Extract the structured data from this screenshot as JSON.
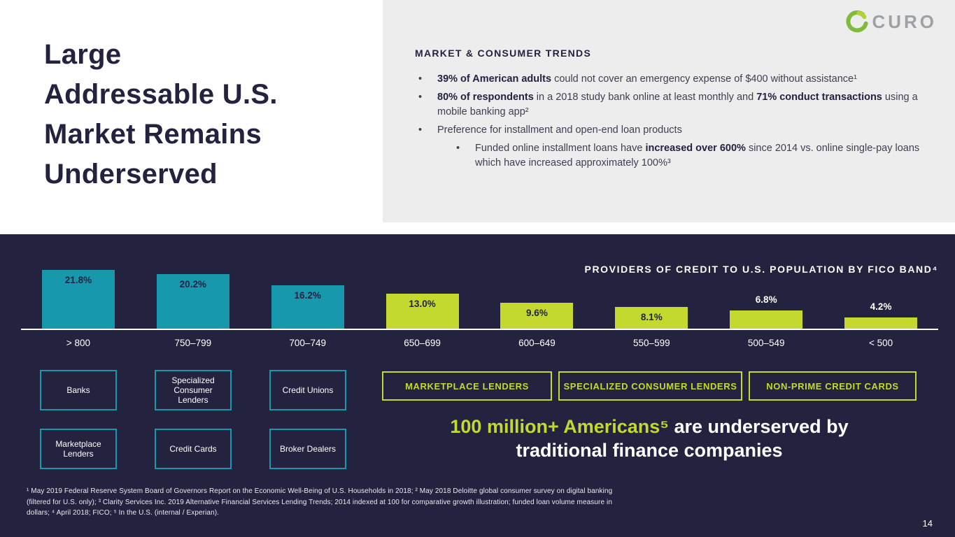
{
  "slide": {
    "title": "Large\nAddressable U.S.\nMarket Remains\nUnderserved",
    "page_number": "14"
  },
  "logo": {
    "text": "CURO"
  },
  "trends": {
    "heading": "MARKET & CONSUMER TRENDS",
    "bullets": [
      {
        "level": 1,
        "segments": [
          {
            "t": "39% of American adults",
            "b": true
          },
          {
            "t": " could not cover an emergency expense of $400 without assistance¹",
            "b": false
          }
        ]
      },
      {
        "level": 1,
        "segments": [
          {
            "t": "80% of respondents",
            "b": true
          },
          {
            "t": " in a 2018 study bank online at least monthly and ",
            "b": false
          },
          {
            "t": "71% conduct transactions",
            "b": true
          },
          {
            "t": " using a mobile banking app²",
            "b": false
          }
        ]
      },
      {
        "level": 1,
        "segments": [
          {
            "t": "Preference for installment and open-end loan products",
            "b": false
          }
        ]
      },
      {
        "level": 2,
        "segments": [
          {
            "t": "Funded online installment loans have ",
            "b": false
          },
          {
            "t": "increased over 600%",
            "b": true
          },
          {
            "t": " since 2014 vs. online single-pay loans which have increased approximately 100%³",
            "b": false
          }
        ]
      }
    ]
  },
  "chart_data": {
    "type": "bar",
    "title": "PROVIDERS OF CREDIT TO U.S. POPULATION BY FICO BAND⁴",
    "categories": [
      "> 800",
      "750–799",
      "700–749",
      "650–699",
      "600–649",
      "550–599",
      "500–549",
      "< 500"
    ],
    "values": [
      21.8,
      20.2,
      16.2,
      13.0,
      9.6,
      8.1,
      6.8,
      4.2
    ],
    "value_labels": [
      "21.8%",
      "20.2%",
      "16.2%",
      "13.0%",
      "9.6%",
      "8.1%",
      "6.8%",
      "4.2%"
    ],
    "bar_colors": [
      "#1898AC",
      "#1898AC",
      "#1898AC",
      "#C3D930",
      "#C3D930",
      "#C3D930",
      "#C3D930",
      "#C3D930"
    ],
    "unit": "%",
    "ylim": [
      0,
      22
    ],
    "grid": false,
    "legend_position": "none"
  },
  "providers": {
    "teal_columns": [
      [
        "Banks",
        "Marketplace Lenders"
      ],
      [
        "Specialized Consumer Lenders",
        "Credit Cards"
      ],
      [
        "Credit Unions",
        "Broker Dealers"
      ]
    ],
    "green_boxes": [
      "MARKETPLACE LENDERS",
      "SPECIALIZED CONSUMER LENDERS",
      "NON-PRIME CREDIT CARDS"
    ]
  },
  "statement": {
    "line1_highlight": "100 million+ Americans⁵",
    "line1_rest": " are underserved by",
    "line2": "traditional finance companies"
  },
  "footnotes": "¹ May 2019 Federal Reserve System Board of Governors Report on the Economic Well-Being of U.S. Households in 2018; ² May 2018 Deloitte global consumer survey on digital banking (filtered for U.S. only); ³ Clarity Services Inc. 2019 Alternative Financial Services Lending Trends; 2014 indexed at 100 for comparative growth illustration; funded loan volume measure in dollars; ⁴ April 2018; FICO; ⁵ In the U.S. (internal / Experian).",
  "colors": {
    "navy": "#23233F",
    "teal": "#1898AC",
    "green": "#C3D930",
    "panel_gray": "#EDEDEE"
  }
}
